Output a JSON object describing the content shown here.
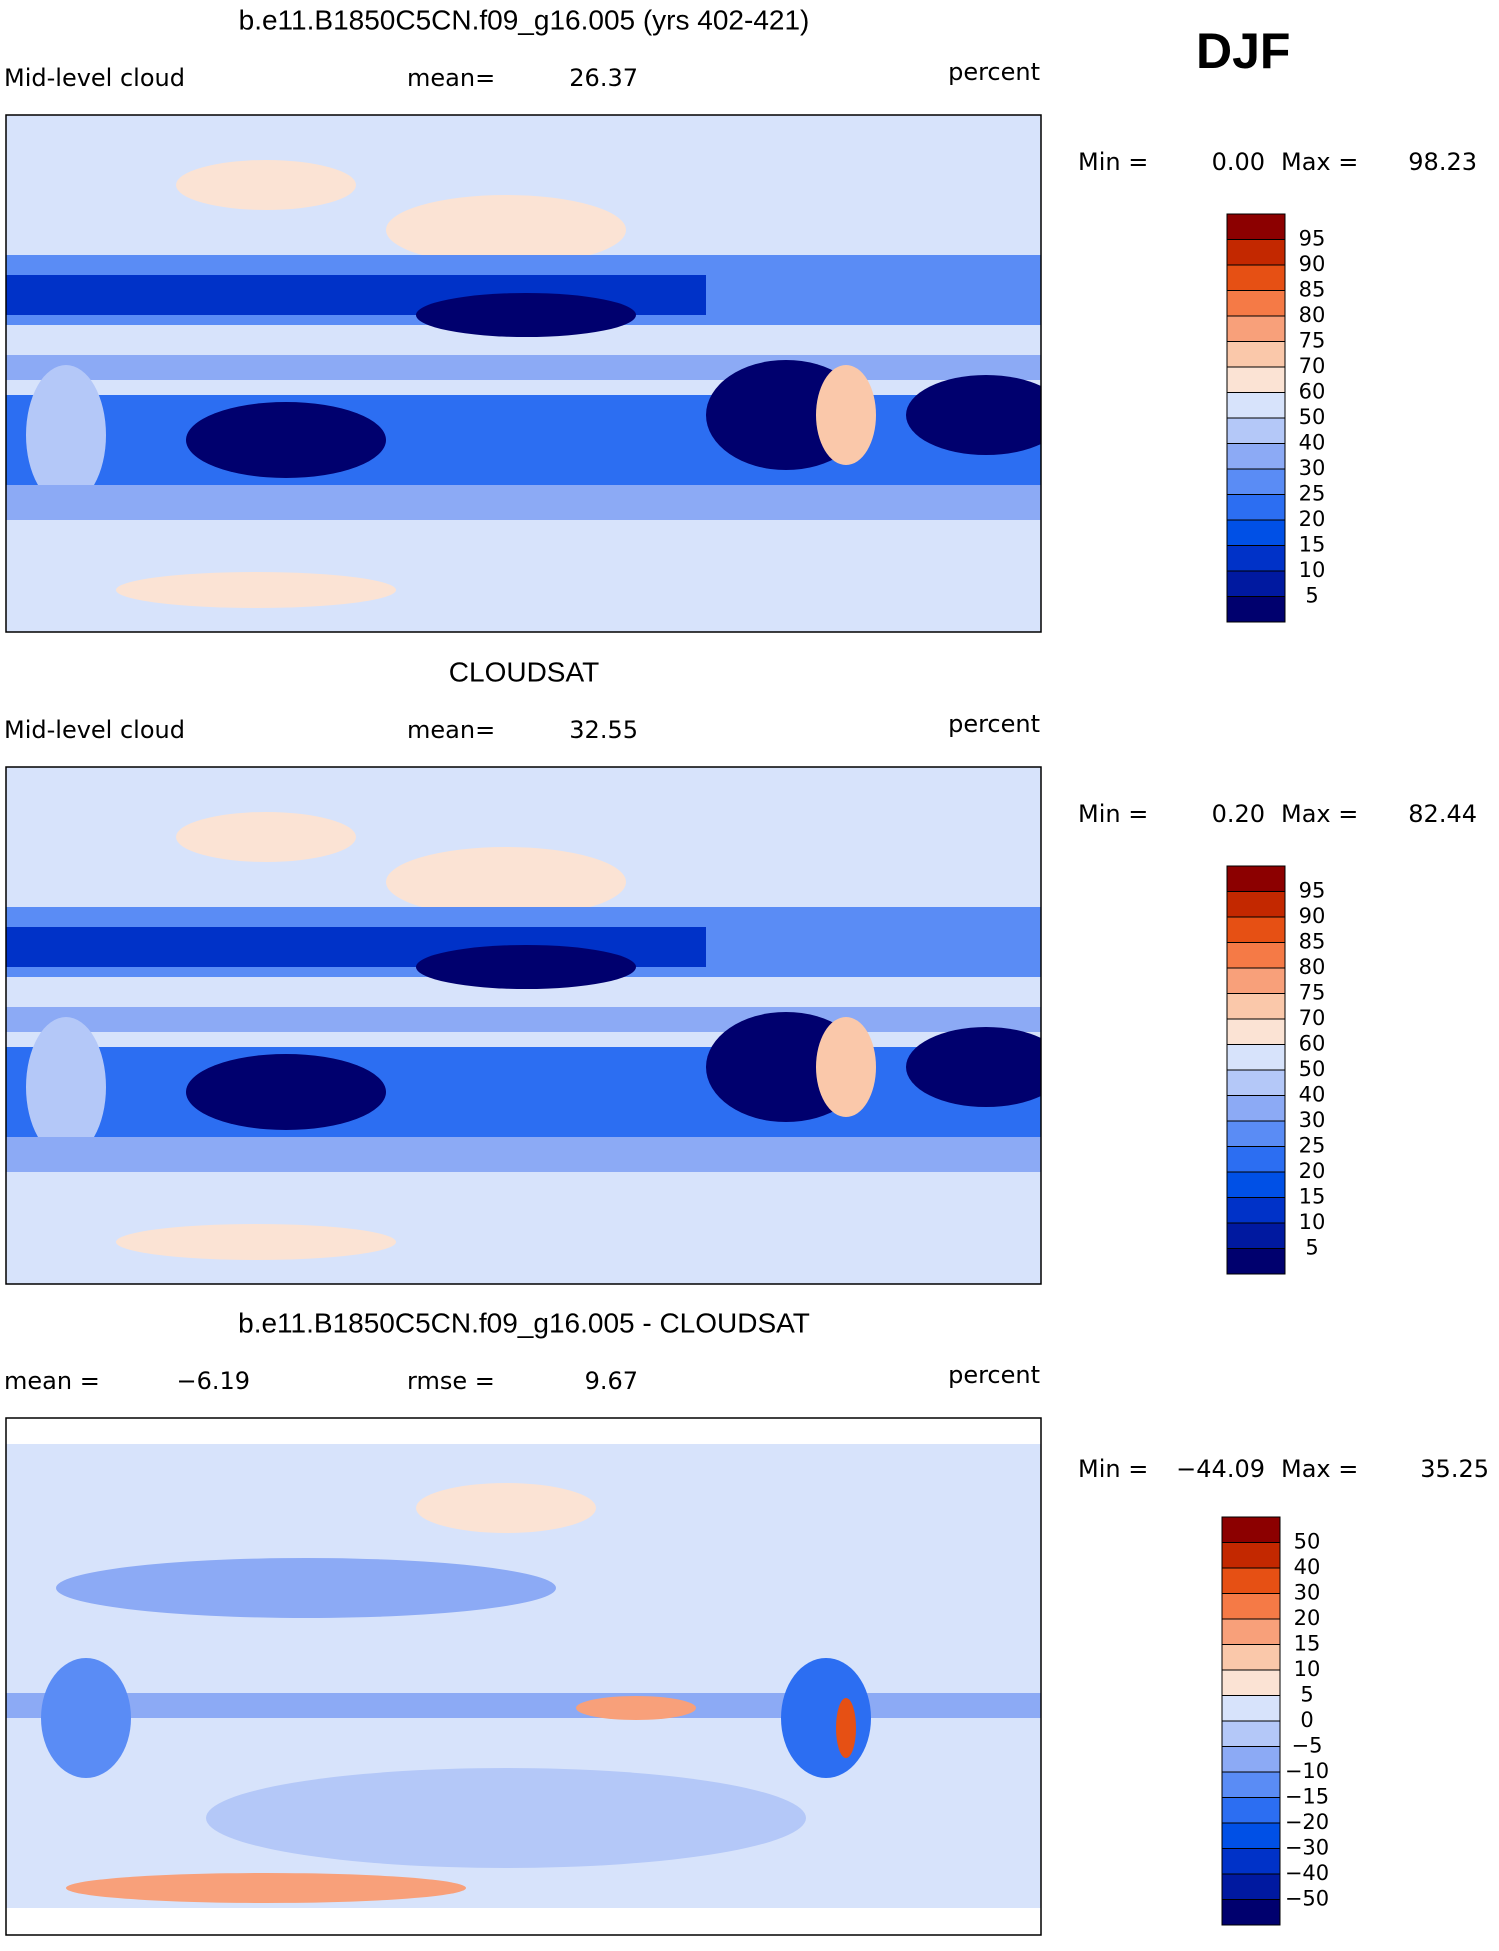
{
  "season": "DJF",
  "panels": [
    {
      "title": "b.e11.B1850C5CN.f09_g16.005 (yrs 402-421)",
      "left": [
        "Mid-level cloud"
      ],
      "middle": [
        "mean=",
        "26.37"
      ],
      "unit": "percent",
      "range": [
        "Min =",
        "0.00",
        "Max =",
        "98.23"
      ],
      "levels": [
        "95",
        "90",
        "85",
        "80",
        "75",
        "70",
        "60",
        "50",
        "40",
        "30",
        "25",
        "20",
        "15",
        "10",
        "5"
      ]
    },
    {
      "title": "CLOUDSAT",
      "left": [
        "Mid-level cloud"
      ],
      "middle": [
        "mean=",
        "32.55"
      ],
      "unit": "percent",
      "range": [
        "Min =",
        "0.20",
        "Max =",
        "82.44"
      ],
      "levels": [
        "95",
        "90",
        "85",
        "80",
        "75",
        "70",
        "60",
        "50",
        "40",
        "30",
        "25",
        "20",
        "15",
        "10",
        "5"
      ]
    },
    {
      "title": "b.e11.B1850C5CN.f09_g16.005 - CLOUDSAT",
      "left": [
        "mean =",
        "−6.19"
      ],
      "middle": [
        "rmse =",
        "9.67"
      ],
      "unit": "percent",
      "range": [
        "Min =",
        "−44.09",
        "Max =",
        "35.25"
      ],
      "levels": [
        "50",
        "40",
        "30",
        "20",
        "15",
        "10",
        "5",
        "0",
        "−5",
        "−10",
        "−15",
        "−20",
        "−30",
        "−40",
        "−50"
      ]
    }
  ]
}
